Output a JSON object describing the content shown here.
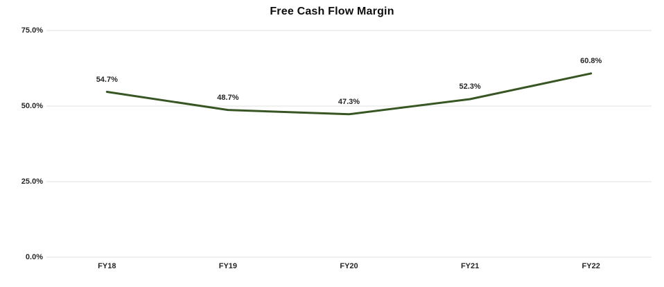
{
  "chart_data": {
    "type": "line",
    "title": "Free Cash Flow Margin",
    "categories": [
      "FY18",
      "FY19",
      "FY20",
      "FY21",
      "FY22"
    ],
    "series": [
      {
        "name": "Free Cash Flow Margin",
        "values": [
          54.7,
          48.7,
          47.3,
          52.3,
          60.8
        ],
        "color": "#375623"
      }
    ],
    "value_labels": [
      "54.7%",
      "48.7%",
      "47.3%",
      "52.3%",
      "60.8%"
    ],
    "y_ticks": [
      {
        "value": 75,
        "label": "75.0%"
      },
      {
        "value": 50,
        "label": "50.0%"
      },
      {
        "value": 25,
        "label": "25.0%"
      },
      {
        "value": 0,
        "label": "0.0%"
      }
    ],
    "ylim": [
      0,
      75
    ],
    "xlabel": "",
    "ylabel": "",
    "grid": "horizontal",
    "legend": "none",
    "colors": {
      "line": "#375623",
      "gridline": "#ebebeb",
      "title": "#0d0d0d",
      "label": "#262626",
      "background": "#ffffff"
    }
  }
}
